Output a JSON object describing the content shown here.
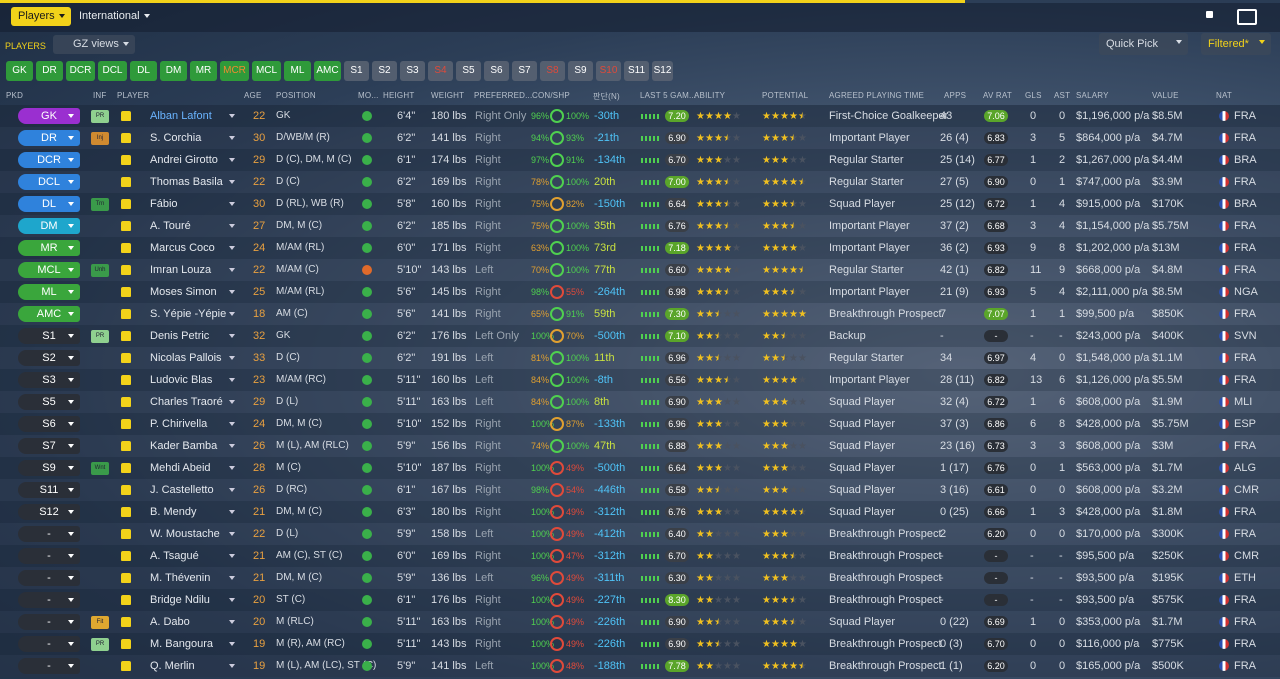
{
  "top": {
    "tabs": [
      "Players",
      "International"
    ]
  },
  "toolbar": {
    "label": "PLAYERS",
    "view": "GZ views",
    "quick": "Quick Pick",
    "filter": "Filtered*"
  },
  "filters": [
    "GK",
    "DR",
    "DCR",
    "DCL",
    "DL",
    "DM",
    "MR",
    "MCR",
    "MCL",
    "ML",
    "AMC",
    "S1",
    "S2",
    "S3",
    "S4",
    "S5",
    "S6",
    "S7",
    "S8",
    "S9",
    "S10",
    "S11",
    "S12"
  ],
  "headers": [
    "PKD",
    "INF",
    "PLAYER",
    "AGE",
    "POSITION",
    "MO...",
    "HEIGHT",
    "WEIGHT",
    "PREFERRED...",
    "CON/SHP",
    "판단(N)",
    "LAST 5 GAM...",
    "ABILITY",
    "POTENTIAL",
    "AGREED PLAYING TIME",
    "APPS",
    "AV RAT",
    "GLS",
    "AST",
    "SALARY",
    "VALUE",
    "NAT"
  ],
  "rows": [
    {
      "pkd": "GK",
      "inf": "PR",
      "name": "Alban Lafont",
      "age": "22",
      "pos": "GK",
      "ht": "6'4\"",
      "wt": "180 lbs",
      "ft": "Right Only",
      "con": "96%",
      "shp": "100%",
      "rank": "-30th",
      "form": "7.20",
      "ab": 4,
      "pot": 4.5,
      "time": "First-Choice Goalkeeper",
      "apps": "43",
      "avr": "7.06",
      "gls": "0",
      "ast": "0",
      "sal": "$1,196,000 p/a",
      "val": "$8.5M",
      "nat": "FRA"
    },
    {
      "pkd": "DR",
      "inf": "Inj",
      "name": "S. Corchia",
      "age": "30",
      "pos": "D/WB/M (R)",
      "ht": "6'2\"",
      "wt": "141 lbs",
      "ft": "Right",
      "con": "94%",
      "shp": "93%",
      "rank": "-21th",
      "form": "6.90",
      "ab": 3.5,
      "pot": 3.5,
      "time": "Important Player",
      "apps": "26 (4)",
      "avr": "6.83",
      "gls": "3",
      "ast": "5",
      "sal": "$864,000 p/a",
      "val": "$4.7M",
      "nat": "FRA"
    },
    {
      "pkd": "DCR",
      "name": "Andrei Girotto",
      "age": "29",
      "pos": "D (C), DM, M (C)",
      "ht": "6'1\"",
      "wt": "174 lbs",
      "ft": "Right",
      "con": "97%",
      "shp": "91%",
      "rank": "-134th",
      "form": "6.70",
      "ab": 3,
      "pot": 3,
      "time": "Regular Starter",
      "apps": "25 (14)",
      "avr": "6.77",
      "gls": "1",
      "ast": "2",
      "sal": "$1,267,000 p/a",
      "val": "$4.4M",
      "nat": "BRA"
    },
    {
      "pkd": "DCL",
      "name": "Thomas Basila",
      "age": "22",
      "pos": "D (C)",
      "ht": "6'2\"",
      "wt": "169 lbs",
      "ft": "Right",
      "con": "78%",
      "shp": "100%",
      "rank": "20th",
      "form": "7.00",
      "ab": 3.5,
      "pot": 4.5,
      "time": "Regular Starter",
      "apps": "27 (5)",
      "avr": "6.90",
      "gls": "0",
      "ast": "1",
      "sal": "$747,000 p/a",
      "val": "$3.9M",
      "nat": "FRA"
    },
    {
      "pkd": "DL",
      "inf": "Trn",
      "name": "Fábio",
      "age": "30",
      "pos": "D (RL), WB (R)",
      "ht": "5'8\"",
      "wt": "160 lbs",
      "ft": "Right",
      "con": "75%",
      "shp": "82%",
      "rank": "-150th",
      "form": "6.64",
      "ab": 3.5,
      "pot": 3.5,
      "time": "Squad Player",
      "apps": "25 (12)",
      "avr": "6.72",
      "gls": "1",
      "ast": "4",
      "sal": "$915,000 p/a",
      "val": "$170K",
      "nat": "BRA"
    },
    {
      "pkd": "DM",
      "name": "A. Touré",
      "age": "27",
      "pos": "DM, M (C)",
      "ht": "6'2\"",
      "wt": "185 lbs",
      "ft": "Right",
      "con": "75%",
      "shp": "100%",
      "rank": "35th",
      "form": "6.76",
      "ab": 3.5,
      "pot": 3.5,
      "time": "Important Player",
      "apps": "37 (2)",
      "avr": "6.68",
      "gls": "3",
      "ast": "4",
      "sal": "$1,154,000 p/a",
      "val": "$5.75M",
      "nat": "FRA"
    },
    {
      "pkd": "MR",
      "name": "Marcus Coco",
      "age": "24",
      "pos": "M/AM (RL)",
      "ht": "6'0\"",
      "wt": "171 lbs",
      "ft": "Right",
      "con": "63%",
      "shp": "100%",
      "rank": "73rd",
      "form": "7.18",
      "ab": 4,
      "pot": 4,
      "time": "Important Player",
      "apps": "36 (2)",
      "avr": "6.93",
      "gls": "9",
      "ast": "8",
      "sal": "$1,202,000 p/a",
      "val": "$13M",
      "nat": "FRA"
    },
    {
      "pkd": "MCL",
      "inf": "Unh",
      "name": "Imran Louza",
      "age": "22",
      "pos": "M/AM (C)",
      "ht": "5'10\"",
      "wt": "143 lbs",
      "ft": "Left",
      "con": "70%",
      "shp": "100%",
      "rank": "77th",
      "form": "6.60",
      "ab": 4,
      "pot": 4.5,
      "time": "Regular Starter",
      "apps": "42 (1)",
      "avr": "6.82",
      "gls": "11",
      "ast": "9",
      "sal": "$668,000 p/a",
      "val": "$4.8M",
      "nat": "FRA"
    },
    {
      "pkd": "ML",
      "name": "Moses Simon",
      "age": "25",
      "pos": "M/AM (RL)",
      "ht": "5'6\"",
      "wt": "145 lbs",
      "ft": "Right",
      "con": "98%",
      "shp": "55%",
      "rank": "-264th",
      "form": "6.98",
      "ab": 3.5,
      "pot": 3.5,
      "time": "Important Player",
      "apps": "21 (9)",
      "avr": "6.93",
      "gls": "5",
      "ast": "4",
      "sal": "$2,111,000 p/a",
      "val": "$8.5M",
      "nat": "NGA"
    },
    {
      "pkd": "AMC",
      "name": "S. Yépie -Yépie",
      "age": "18",
      "pos": "AM (C)",
      "ht": "5'6\"",
      "wt": "141 lbs",
      "ft": "Right",
      "con": "65%",
      "shp": "91%",
      "rank": "59th",
      "form": "7.30",
      "ab": 2.5,
      "pot": 5,
      "time": "Breakthrough Prospect",
      "apps": "7",
      "avr": "7.07",
      "gls": "1",
      "ast": "1",
      "sal": "$99,500 p/a",
      "val": "$850K",
      "nat": "FRA"
    },
    {
      "pkd": "S1",
      "inf": "PR",
      "name": "Denis Petric",
      "age": "32",
      "pos": "GK",
      "ht": "6'2\"",
      "wt": "176 lbs",
      "ft": "Left Only",
      "con": "100%",
      "shp": "70%",
      "rank": "-500th",
      "form": "7.10",
      "ab": 2.5,
      "pot": 2.5,
      "time": "Backup",
      "apps": "-",
      "avr": "-",
      "gls": "-",
      "ast": "-",
      "sal": "$243,000 p/a",
      "val": "$400K",
      "nat": "SVN"
    },
    {
      "pkd": "S2",
      "name": "Nicolas Pallois",
      "age": "33",
      "pos": "D (C)",
      "ht": "6'2\"",
      "wt": "191 lbs",
      "ft": "Left",
      "con": "81%",
      "shp": "100%",
      "rank": "11th",
      "form": "6.96",
      "ab": 2.5,
      "pot": 2.5,
      "time": "Regular Starter",
      "apps": "34",
      "avr": "6.97",
      "gls": "4",
      "ast": "0",
      "sal": "$1,548,000 p/a",
      "val": "$1.1M",
      "nat": "FRA"
    },
    {
      "pkd": "S3",
      "name": "Ludovic Blas",
      "age": "23",
      "pos": "M/AM (RC)",
      "ht": "5'11\"",
      "wt": "160 lbs",
      "ft": "Left",
      "con": "84%",
      "shp": "100%",
      "rank": "-8th",
      "form": "6.56",
      "ab": 3.5,
      "pot": 4,
      "time": "Important Player",
      "apps": "28 (11)",
      "avr": "6.82",
      "gls": "13",
      "ast": "6",
      "sal": "$1,126,000 p/a",
      "val": "$5.5M",
      "nat": "FRA"
    },
    {
      "pkd": "S5",
      "name": "Charles Traoré",
      "age": "29",
      "pos": "D (L)",
      "ht": "5'11\"",
      "wt": "163 lbs",
      "ft": "Left",
      "con": "84%",
      "shp": "100%",
      "rank": "8th",
      "form": "6.90",
      "ab": 3,
      "pot": 3,
      "time": "Squad Player",
      "apps": "32 (4)",
      "avr": "6.72",
      "gls": "1",
      "ast": "6",
      "sal": "$608,000 p/a",
      "val": "$1.9M",
      "nat": "MLI"
    },
    {
      "pkd": "S6",
      "name": "P. Chirivella",
      "age": "24",
      "pos": "DM, M (C)",
      "ht": "5'10\"",
      "wt": "152 lbs",
      "ft": "Right",
      "con": "100%",
      "shp": "87%",
      "rank": "-133th",
      "form": "6.96",
      "ab": 3,
      "pot": 3,
      "time": "Squad Player",
      "apps": "37 (3)",
      "avr": "6.86",
      "gls": "6",
      "ast": "8",
      "sal": "$428,000 p/a",
      "val": "$5.75M",
      "nat": "ESP"
    },
    {
      "pkd": "S7",
      "name": "Kader Bamba",
      "age": "26",
      "pos": "M (L), AM (RLC)",
      "ht": "5'9\"",
      "wt": "156 lbs",
      "ft": "Right",
      "con": "74%",
      "shp": "100%",
      "rank": "47th",
      "form": "6.88",
      "ab": 3,
      "pot": 3,
      "time": "Squad Player",
      "apps": "23 (16)",
      "avr": "6.73",
      "gls": "3",
      "ast": "3",
      "sal": "$608,000 p/a",
      "val": "$3M",
      "nat": "FRA"
    },
    {
      "pkd": "S9",
      "inf": "Wnt",
      "name": "Mehdi Abeid",
      "age": "28",
      "pos": "M (C)",
      "ht": "5'10\"",
      "wt": "187 lbs",
      "ft": "Right",
      "con": "100%",
      "shp": "49%",
      "rank": "-500th",
      "form": "6.64",
      "ab": 3,
      "pot": 3,
      "time": "Squad Player",
      "apps": "1 (17)",
      "avr": "6.76",
      "gls": "0",
      "ast": "1",
      "sal": "$563,000 p/a",
      "val": "$1.7M",
      "nat": "ALG"
    },
    {
      "pkd": "S11",
      "name": "J. Castelletto",
      "age": "26",
      "pos": "D (RC)",
      "ht": "6'1\"",
      "wt": "167 lbs",
      "ft": "Right",
      "con": "98%",
      "shp": "54%",
      "rank": "-446th",
      "form": "6.58",
      "ab": 2.5,
      "pot": 3,
      "time": "Squad Player",
      "apps": "3 (16)",
      "avr": "6.61",
      "gls": "0",
      "ast": "0",
      "sal": "$608,000 p/a",
      "val": "$3.2M",
      "nat": "CMR"
    },
    {
      "pkd": "S12",
      "name": "B. Mendy",
      "age": "21",
      "pos": "DM, M (C)",
      "ht": "6'3\"",
      "wt": "180 lbs",
      "ft": "Right",
      "con": "100%",
      "shp": "49%",
      "rank": "-312th",
      "form": "6.76",
      "ab": 3,
      "pot": 4.5,
      "time": "Squad Player",
      "apps": "0 (25)",
      "avr": "6.66",
      "gls": "1",
      "ast": "3",
      "sal": "$428,000 p/a",
      "val": "$1.8M",
      "nat": "FRA"
    },
    {
      "pkd": "-",
      "name": "W. Moustache",
      "age": "22",
      "pos": "D (L)",
      "ht": "5'9\"",
      "wt": "158 lbs",
      "ft": "Left",
      "con": "100%",
      "shp": "49%",
      "rank": "-412th",
      "form": "6.40",
      "ab": 2,
      "pot": 3,
      "time": "Breakthrough Prospect",
      "apps": "2",
      "avr": "6.20",
      "gls": "0",
      "ast": "0",
      "sal": "$170,000 p/a",
      "val": "$300K",
      "nat": "FRA"
    },
    {
      "pkd": "-",
      "name": "A. Tsagué",
      "age": "21",
      "pos": "AM (C), ST (C)",
      "ht": "6'0\"",
      "wt": "169 lbs",
      "ft": "Right",
      "con": "100%",
      "shp": "47%",
      "rank": "-312th",
      "form": "6.70",
      "ab": 2,
      "pot": 3.5,
      "time": "Breakthrough Prospect",
      "apps": "-",
      "avr": "-",
      "gls": "-",
      "ast": "-",
      "sal": "$95,500 p/a",
      "val": "$250K",
      "nat": "CMR"
    },
    {
      "pkd": "-",
      "name": "M. Thévenin",
      "age": "21",
      "pos": "DM, M (C)",
      "ht": "5'9\"",
      "wt": "136 lbs",
      "ft": "Left",
      "con": "96%",
      "shp": "49%",
      "rank": "-311th",
      "form": "6.30",
      "ab": 2,
      "pot": 3,
      "time": "Breakthrough Prospect",
      "apps": "-",
      "avr": "-",
      "gls": "-",
      "ast": "-",
      "sal": "$93,500 p/a",
      "val": "$195K",
      "nat": "ETH"
    },
    {
      "pkd": "-",
      "name": "Bridge Ndilu",
      "age": "20",
      "pos": "ST (C)",
      "ht": "6'1\"",
      "wt": "176 lbs",
      "ft": "Right",
      "con": "100%",
      "shp": "49%",
      "rank": "-227th",
      "form": "8.30",
      "ab": 2,
      "pot": 3.5,
      "time": "Breakthrough Prospect",
      "apps": "-",
      "avr": "-",
      "gls": "-",
      "ast": "-",
      "sal": "$93,500 p/a",
      "val": "$575K",
      "nat": "FRA"
    },
    {
      "pkd": "-",
      "inf": "Fit",
      "name": "A. Dabo",
      "age": "20",
      "pos": "M (RLC)",
      "ht": "5'11\"",
      "wt": "163 lbs",
      "ft": "Right",
      "con": "100%",
      "shp": "49%",
      "rank": "-226th",
      "form": "6.90",
      "ab": 2.5,
      "pot": 3.5,
      "time": "Squad Player",
      "apps": "0 (22)",
      "avr": "6.69",
      "gls": "1",
      "ast": "0",
      "sal": "$353,000 p/a",
      "val": "$1.7M",
      "nat": "FRA"
    },
    {
      "pkd": "-",
      "inf": "PR",
      "name": "M. Bangoura",
      "age": "19",
      "pos": "M (R), AM (RC)",
      "ht": "5'11\"",
      "wt": "143 lbs",
      "ft": "Right",
      "con": "100%",
      "shp": "49%",
      "rank": "-226th",
      "form": "6.90",
      "ab": 2.5,
      "pot": 4,
      "time": "Breakthrough Prospect",
      "apps": "0 (3)",
      "avr": "6.70",
      "gls": "0",
      "ast": "0",
      "sal": "$116,000 p/a",
      "val": "$775K",
      "nat": "FRA"
    },
    {
      "pkd": "-",
      "name": "Q. Merlin",
      "age": "19",
      "pos": "M (L), AM (LC), ST (C)",
      "ht": "5'9\"",
      "wt": "141 lbs",
      "ft": "Left",
      "con": "100%",
      "shp": "48%",
      "rank": "-188th",
      "form": "7.78",
      "ab": 2,
      "pot": 4.5,
      "time": "Breakthrough Prospect",
      "apps": "1 (1)",
      "avr": "6.20",
      "gls": "0",
      "ast": "0",
      "sal": "$165,000 p/a",
      "val": "$500K",
      "nat": "FRA"
    }
  ]
}
